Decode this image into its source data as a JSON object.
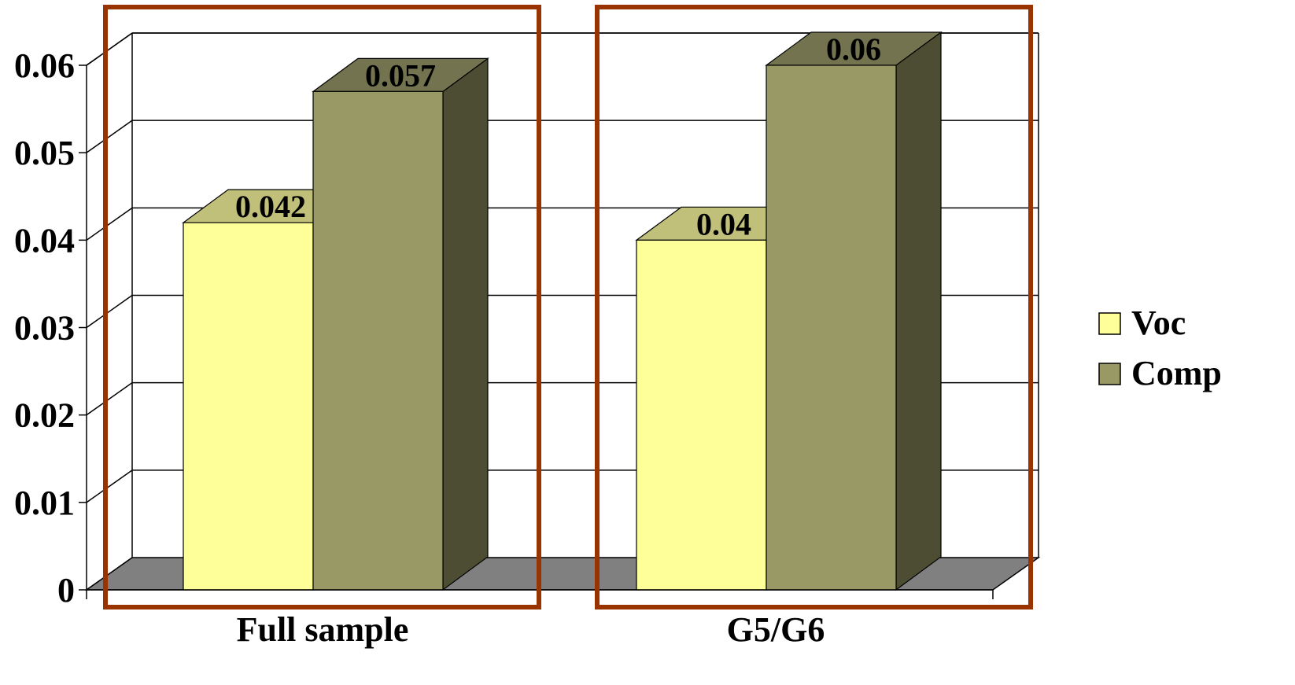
{
  "chart_data": {
    "type": "bar",
    "style": "3d-clustered-column",
    "categories": [
      "Full sample",
      "G5/G6"
    ],
    "series": [
      {
        "name": "Voc",
        "values": [
          0.042,
          0.04
        ],
        "color": "#FFFF99",
        "top_color": "#C0C07A",
        "side_color": "#C0C07A"
      },
      {
        "name": "Comp",
        "values": [
          0.057,
          0.06
        ],
        "color": "#999966",
        "top_color": "#737350",
        "side_color": "#4D4D33"
      }
    ],
    "data_labels": [
      [
        "0.042",
        "0.04"
      ],
      [
        "0.057",
        "0.06"
      ]
    ],
    "y_ticks": [
      "0",
      "0.01",
      "0.02",
      "0.03",
      "0.04",
      "0.05",
      "0.06"
    ],
    "ylim": [
      0,
      0.06
    ],
    "grid": true,
    "floor_color": "#808080",
    "highlight_box_color": "#993300",
    "legend_position": "right"
  }
}
